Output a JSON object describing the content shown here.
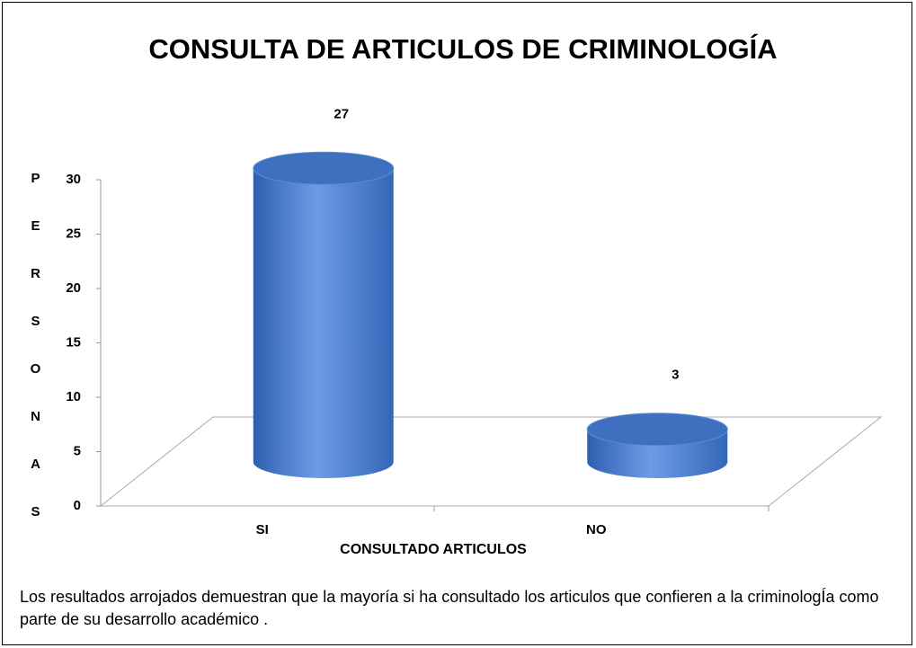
{
  "chart_data": {
    "type": "bar3d",
    "title": "CONSULTA DE ARTICULOS DE CRIMINOLOGÍA",
    "categories": [
      "SI",
      "NO"
    ],
    "values": [
      27,
      3
    ],
    "color": "#4a7fd0",
    "ylim": [
      0,
      30
    ],
    "yticks": [
      0,
      5,
      10,
      15,
      20,
      25,
      30
    ],
    "ylabel": "PERSONAS",
    "xlabel": "CONSULTADO ARTICULOS",
    "show_value_labels": true
  },
  "caption": "Los resultados  arrojados demuestran que la mayoría si ha consultado los articulos que confieren a la criminologÍa como parte de su desarrollo académico ."
}
